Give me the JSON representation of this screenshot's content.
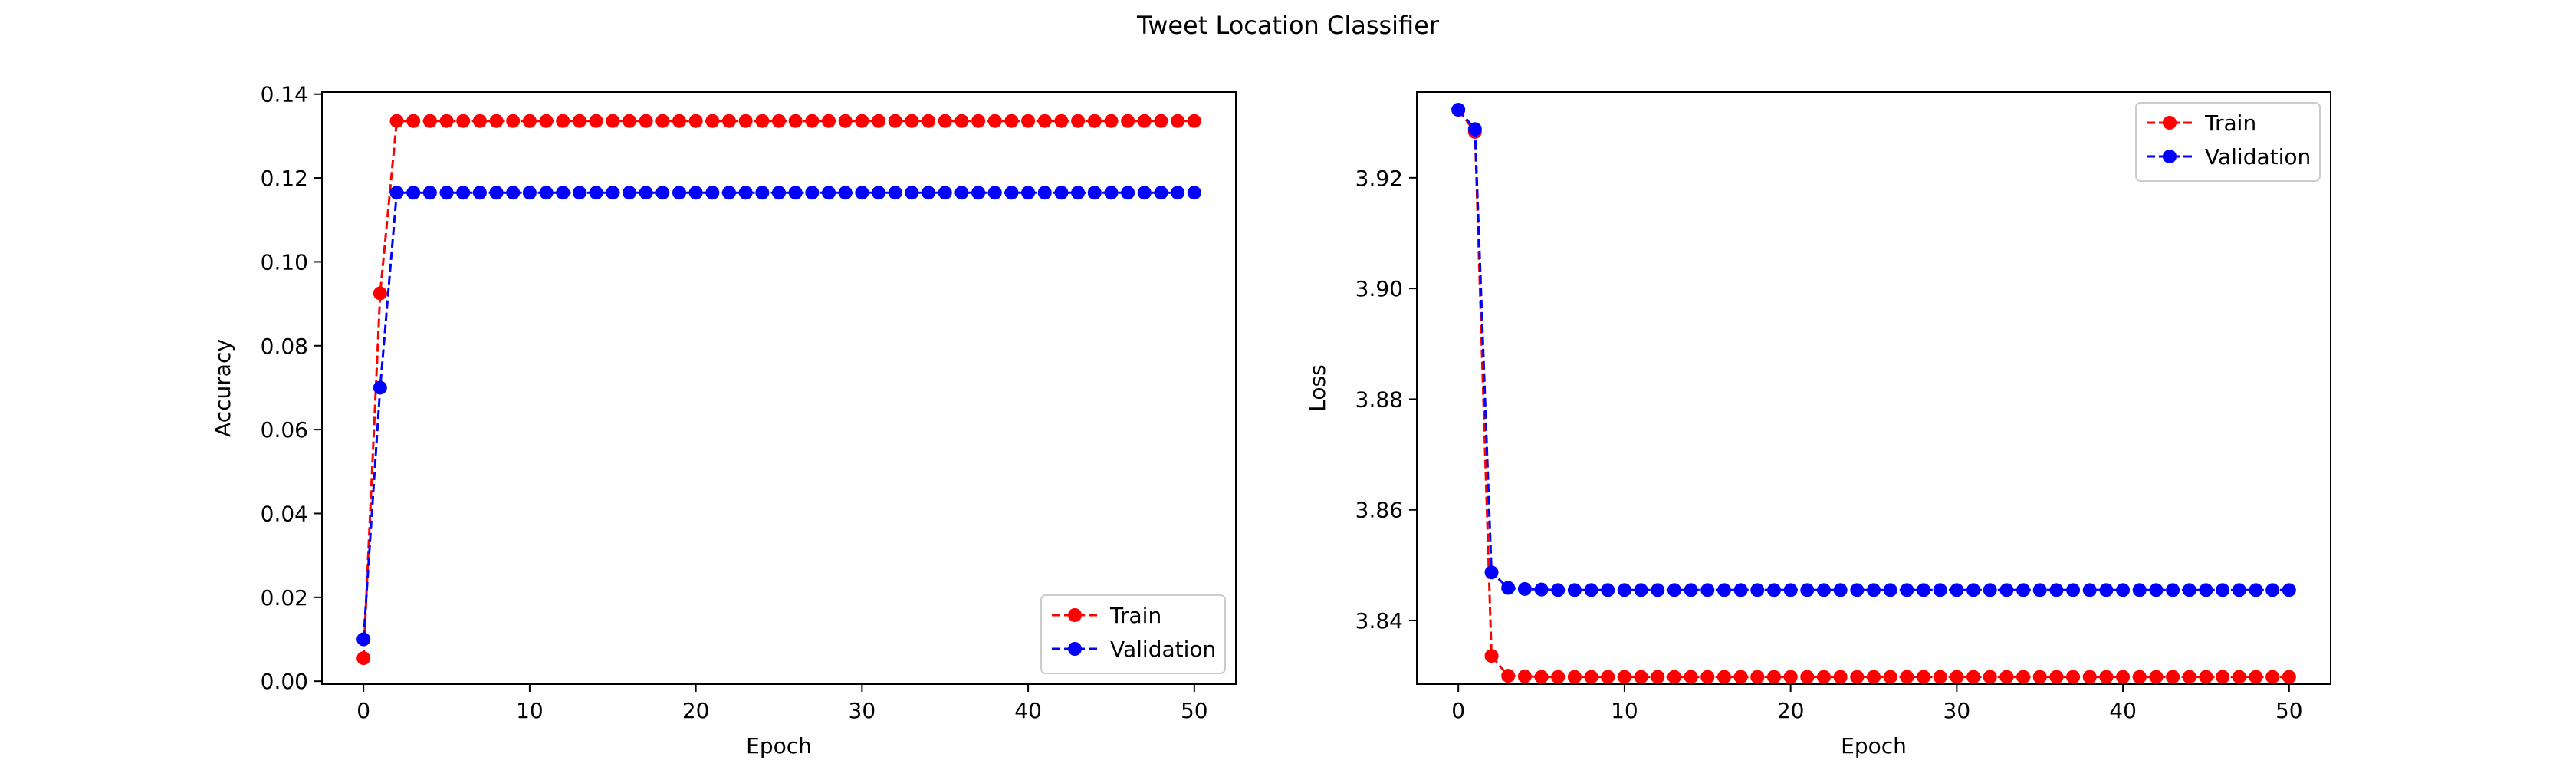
{
  "figure": {
    "title": "Tweet Location Classifier"
  },
  "chart_data": [
    {
      "type": "line",
      "xlabel": "Epoch",
      "ylabel": "Accuracy",
      "xlim": [
        -2.5,
        52.5
      ],
      "ylim": [
        -0.0007,
        0.1405
      ],
      "xticks": [
        0,
        10,
        20,
        30,
        40,
        50
      ],
      "yticks": [
        0.0,
        0.02,
        0.04,
        0.06,
        0.08,
        0.1,
        0.12,
        0.14
      ],
      "ytick_decimals": 2,
      "grid": false,
      "legend_position": "lower-right",
      "series": [
        {
          "name": "Train",
          "color": "#ff0000",
          "linestyle": "dashed",
          "marker": "circle",
          "values": [
            0.0055,
            0.0925,
            0.1336,
            0.1336,
            0.1336,
            0.1336,
            0.1336,
            0.1336,
            0.1336,
            0.1336,
            0.1336,
            0.1336,
            0.1336,
            0.1336,
            0.1336,
            0.1336,
            0.1336,
            0.1336,
            0.1336,
            0.1336,
            0.1336,
            0.1336,
            0.1336,
            0.1336,
            0.1336,
            0.1336,
            0.1336,
            0.1336,
            0.1336,
            0.1336,
            0.1336,
            0.1336,
            0.1336,
            0.1336,
            0.1336,
            0.1336,
            0.1336,
            0.1336,
            0.1336,
            0.1336,
            0.1336,
            0.1336,
            0.1336,
            0.1336,
            0.1336,
            0.1336,
            0.1336,
            0.1336,
            0.1336,
            0.1336,
            0.1336
          ]
        },
        {
          "name": "Validation",
          "color": "#0000ff",
          "linestyle": "dashed",
          "marker": "circle",
          "values": [
            0.01,
            0.07,
            0.1165,
            0.1165,
            0.1165,
            0.1165,
            0.1165,
            0.1165,
            0.1165,
            0.1165,
            0.1165,
            0.1165,
            0.1165,
            0.1165,
            0.1165,
            0.1165,
            0.1165,
            0.1165,
            0.1165,
            0.1165,
            0.1165,
            0.1165,
            0.1165,
            0.1165,
            0.1165,
            0.1165,
            0.1165,
            0.1165,
            0.1165,
            0.1165,
            0.1165,
            0.1165,
            0.1165,
            0.1165,
            0.1165,
            0.1165,
            0.1165,
            0.1165,
            0.1165,
            0.1165,
            0.1165,
            0.1165,
            0.1165,
            0.1165,
            0.1165,
            0.1165,
            0.1165,
            0.1165,
            0.1165,
            0.1165,
            0.1165
          ]
        }
      ]
    },
    {
      "type": "line",
      "xlabel": "Epoch",
      "ylabel": "Loss",
      "xlim": [
        -2.5,
        52.5
      ],
      "ylim": [
        3.8285,
        3.9355
      ],
      "xticks": [
        0,
        10,
        20,
        30,
        40,
        50
      ],
      "yticks": [
        3.84,
        3.86,
        3.88,
        3.9,
        3.92
      ],
      "ytick_decimals": 2,
      "grid": false,
      "legend_position": "upper-right",
      "series": [
        {
          "name": "Train",
          "color": "#ff0000",
          "linestyle": "dashed",
          "marker": "circle",
          "values": [
            3.9323,
            3.9283,
            3.8336,
            3.83,
            3.8299,
            3.8298,
            3.8298,
            3.8298,
            3.8298,
            3.8298,
            3.8298,
            3.8298,
            3.8298,
            3.8298,
            3.8298,
            3.8298,
            3.8298,
            3.8298,
            3.8298,
            3.8298,
            3.8298,
            3.8298,
            3.8298,
            3.8298,
            3.8298,
            3.8298,
            3.8298,
            3.8298,
            3.8298,
            3.8298,
            3.8298,
            3.8298,
            3.8298,
            3.8298,
            3.8298,
            3.8298,
            3.8298,
            3.8298,
            3.8298,
            3.8298,
            3.8298,
            3.8298,
            3.8298,
            3.8298,
            3.8298,
            3.8298,
            3.8298,
            3.8298,
            3.8298,
            3.8298,
            3.8298
          ]
        },
        {
          "name": "Validation",
          "color": "#0000ff",
          "linestyle": "dashed",
          "marker": "circle",
          "values": [
            3.9323,
            3.9288,
            3.8487,
            3.8459,
            3.8457,
            3.8456,
            3.8455,
            3.8455,
            3.8455,
            3.8455,
            3.8455,
            3.8455,
            3.8455,
            3.8455,
            3.8455,
            3.8455,
            3.8455,
            3.8455,
            3.8455,
            3.8455,
            3.8455,
            3.8455,
            3.8455,
            3.8455,
            3.8455,
            3.8455,
            3.8455,
            3.8455,
            3.8455,
            3.8455,
            3.8455,
            3.8455,
            3.8455,
            3.8455,
            3.8455,
            3.8455,
            3.8455,
            3.8455,
            3.8455,
            3.8455,
            3.8455,
            3.8455,
            3.8455,
            3.8455,
            3.8455,
            3.8455,
            3.8455,
            3.8455,
            3.8455,
            3.8455,
            3.8455
          ]
        }
      ]
    }
  ]
}
